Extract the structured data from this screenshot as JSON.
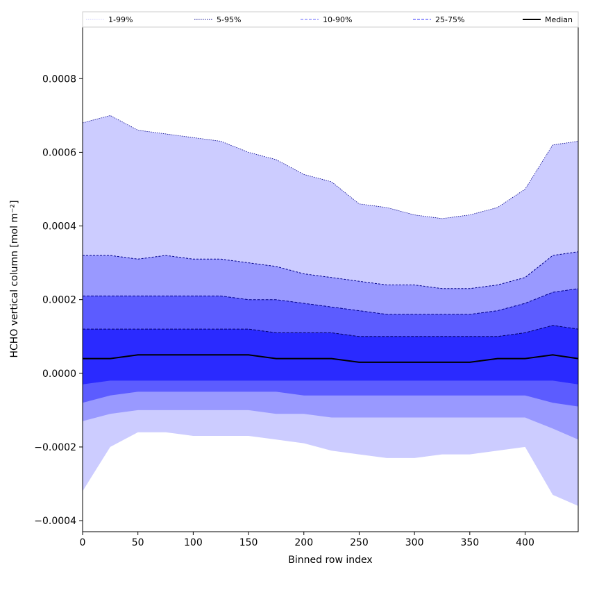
{
  "chart_data": {
    "type": "area",
    "xlabel": "Binned row index",
    "ylabel": "HCHO vertical column [mol m⁻²]",
    "xlim": [
      0,
      448
    ],
    "ylim": [
      -0.00043,
      0.00094
    ],
    "xticks": [
      0,
      50,
      100,
      150,
      200,
      250,
      300,
      350,
      400
    ],
    "xtick_labels": [
      "0",
      "50",
      "100",
      "150",
      "200",
      "250",
      "300",
      "350",
      "400"
    ],
    "yticks": [
      -0.0004,
      -0.0002,
      0.0,
      0.0002,
      0.0004,
      0.0006,
      0.0008
    ],
    "ytick_labels": [
      "−0.0004",
      "−0.0002",
      "0.0000",
      "0.0002",
      "0.0004",
      "0.0006",
      "0.0008"
    ],
    "legend_position": "top",
    "legend": [
      {
        "label": "1-99%",
        "style": "dotted",
        "color": "#ccccff"
      },
      {
        "label": "5-95%",
        "style": "dotted",
        "color": "#00008b"
      },
      {
        "label": "10-90%",
        "style": "dashed",
        "color": "#6666ff"
      },
      {
        "label": "25-75%",
        "style": "dashed",
        "color": "#3333ff"
      },
      {
        "label": "Median",
        "style": "solid",
        "color": "#000000"
      }
    ],
    "band_colors": {
      "b5_95": "#ccccff",
      "b10_90": "#9999ff",
      "b25_75": "#5c5cff",
      "inner": "#2a2aff"
    },
    "x": [
      0,
      25,
      50,
      75,
      100,
      125,
      150,
      175,
      200,
      225,
      250,
      275,
      300,
      325,
      350,
      375,
      400,
      425,
      448
    ],
    "series": [
      {
        "name": "5-95% upper",
        "values": [
          0.00068,
          0.0007,
          0.00066,
          0.00065,
          0.00064,
          0.00063,
          0.0006,
          0.00058,
          0.00054,
          0.00052,
          0.00046,
          0.00045,
          0.00043,
          0.00042,
          0.00043,
          0.00045,
          0.0005,
          0.00062,
          0.00063
        ]
      },
      {
        "name": "10-90% upper",
        "values": [
          0.00032,
          0.00032,
          0.00031,
          0.00032,
          0.00031,
          0.00031,
          0.0003,
          0.00029,
          0.00027,
          0.00026,
          0.00025,
          0.00024,
          0.00024,
          0.00023,
          0.00023,
          0.00024,
          0.00026,
          0.00032,
          0.00033
        ]
      },
      {
        "name": "25-75% upper",
        "values": [
          0.00021,
          0.00021,
          0.00021,
          0.00021,
          0.00021,
          0.00021,
          0.0002,
          0.0002,
          0.00019,
          0.00018,
          0.00017,
          0.00016,
          0.00016,
          0.00016,
          0.00016,
          0.00017,
          0.00019,
          0.00022,
          0.00023
        ]
      },
      {
        "name": "inner upper",
        "values": [
          0.00012,
          0.00012,
          0.00012,
          0.00012,
          0.00012,
          0.00012,
          0.00012,
          0.00011,
          0.00011,
          0.00011,
          0.0001,
          0.0001,
          0.0001,
          0.0001,
          0.0001,
          0.0001,
          0.00011,
          0.00013,
          0.00012
        ]
      },
      {
        "name": "Median",
        "values": [
          4e-05,
          4e-05,
          5e-05,
          5e-05,
          5e-05,
          5e-05,
          5e-05,
          4e-05,
          4e-05,
          4e-05,
          3e-05,
          3e-05,
          3e-05,
          3e-05,
          3e-05,
          4e-05,
          4e-05,
          5e-05,
          4e-05
        ]
      },
      {
        "name": "inner lower",
        "values": [
          -3e-05,
          -2e-05,
          -2e-05,
          -2e-05,
          -2e-05,
          -2e-05,
          -2e-05,
          -2e-05,
          -2e-05,
          -2e-05,
          -2e-05,
          -2e-05,
          -2e-05,
          -2e-05,
          -2e-05,
          -2e-05,
          -2e-05,
          -2e-05,
          -3e-05
        ]
      },
      {
        "name": "25-75% lower",
        "values": [
          -8e-05,
          -6e-05,
          -5e-05,
          -5e-05,
          -5e-05,
          -5e-05,
          -5e-05,
          -5e-05,
          -6e-05,
          -6e-05,
          -6e-05,
          -6e-05,
          -6e-05,
          -6e-05,
          -6e-05,
          -6e-05,
          -6e-05,
          -8e-05,
          -9e-05
        ]
      },
      {
        "name": "10-90% lower",
        "values": [
          -0.00013,
          -0.00011,
          -0.0001,
          -0.0001,
          -0.0001,
          -0.0001,
          -0.0001,
          -0.00011,
          -0.00011,
          -0.00012,
          -0.00012,
          -0.00012,
          -0.00012,
          -0.00012,
          -0.00012,
          -0.00012,
          -0.00012,
          -0.00015,
          -0.00018
        ]
      },
      {
        "name": "5-95% lower",
        "values": [
          -0.00032,
          -0.0002,
          -0.00016,
          -0.00016,
          -0.00017,
          -0.00017,
          -0.00017,
          -0.00018,
          -0.00019,
          -0.00021,
          -0.00022,
          -0.00023,
          -0.00023,
          -0.00022,
          -0.00022,
          -0.00021,
          -0.0002,
          -0.00033,
          -0.00036
        ]
      }
    ]
  }
}
